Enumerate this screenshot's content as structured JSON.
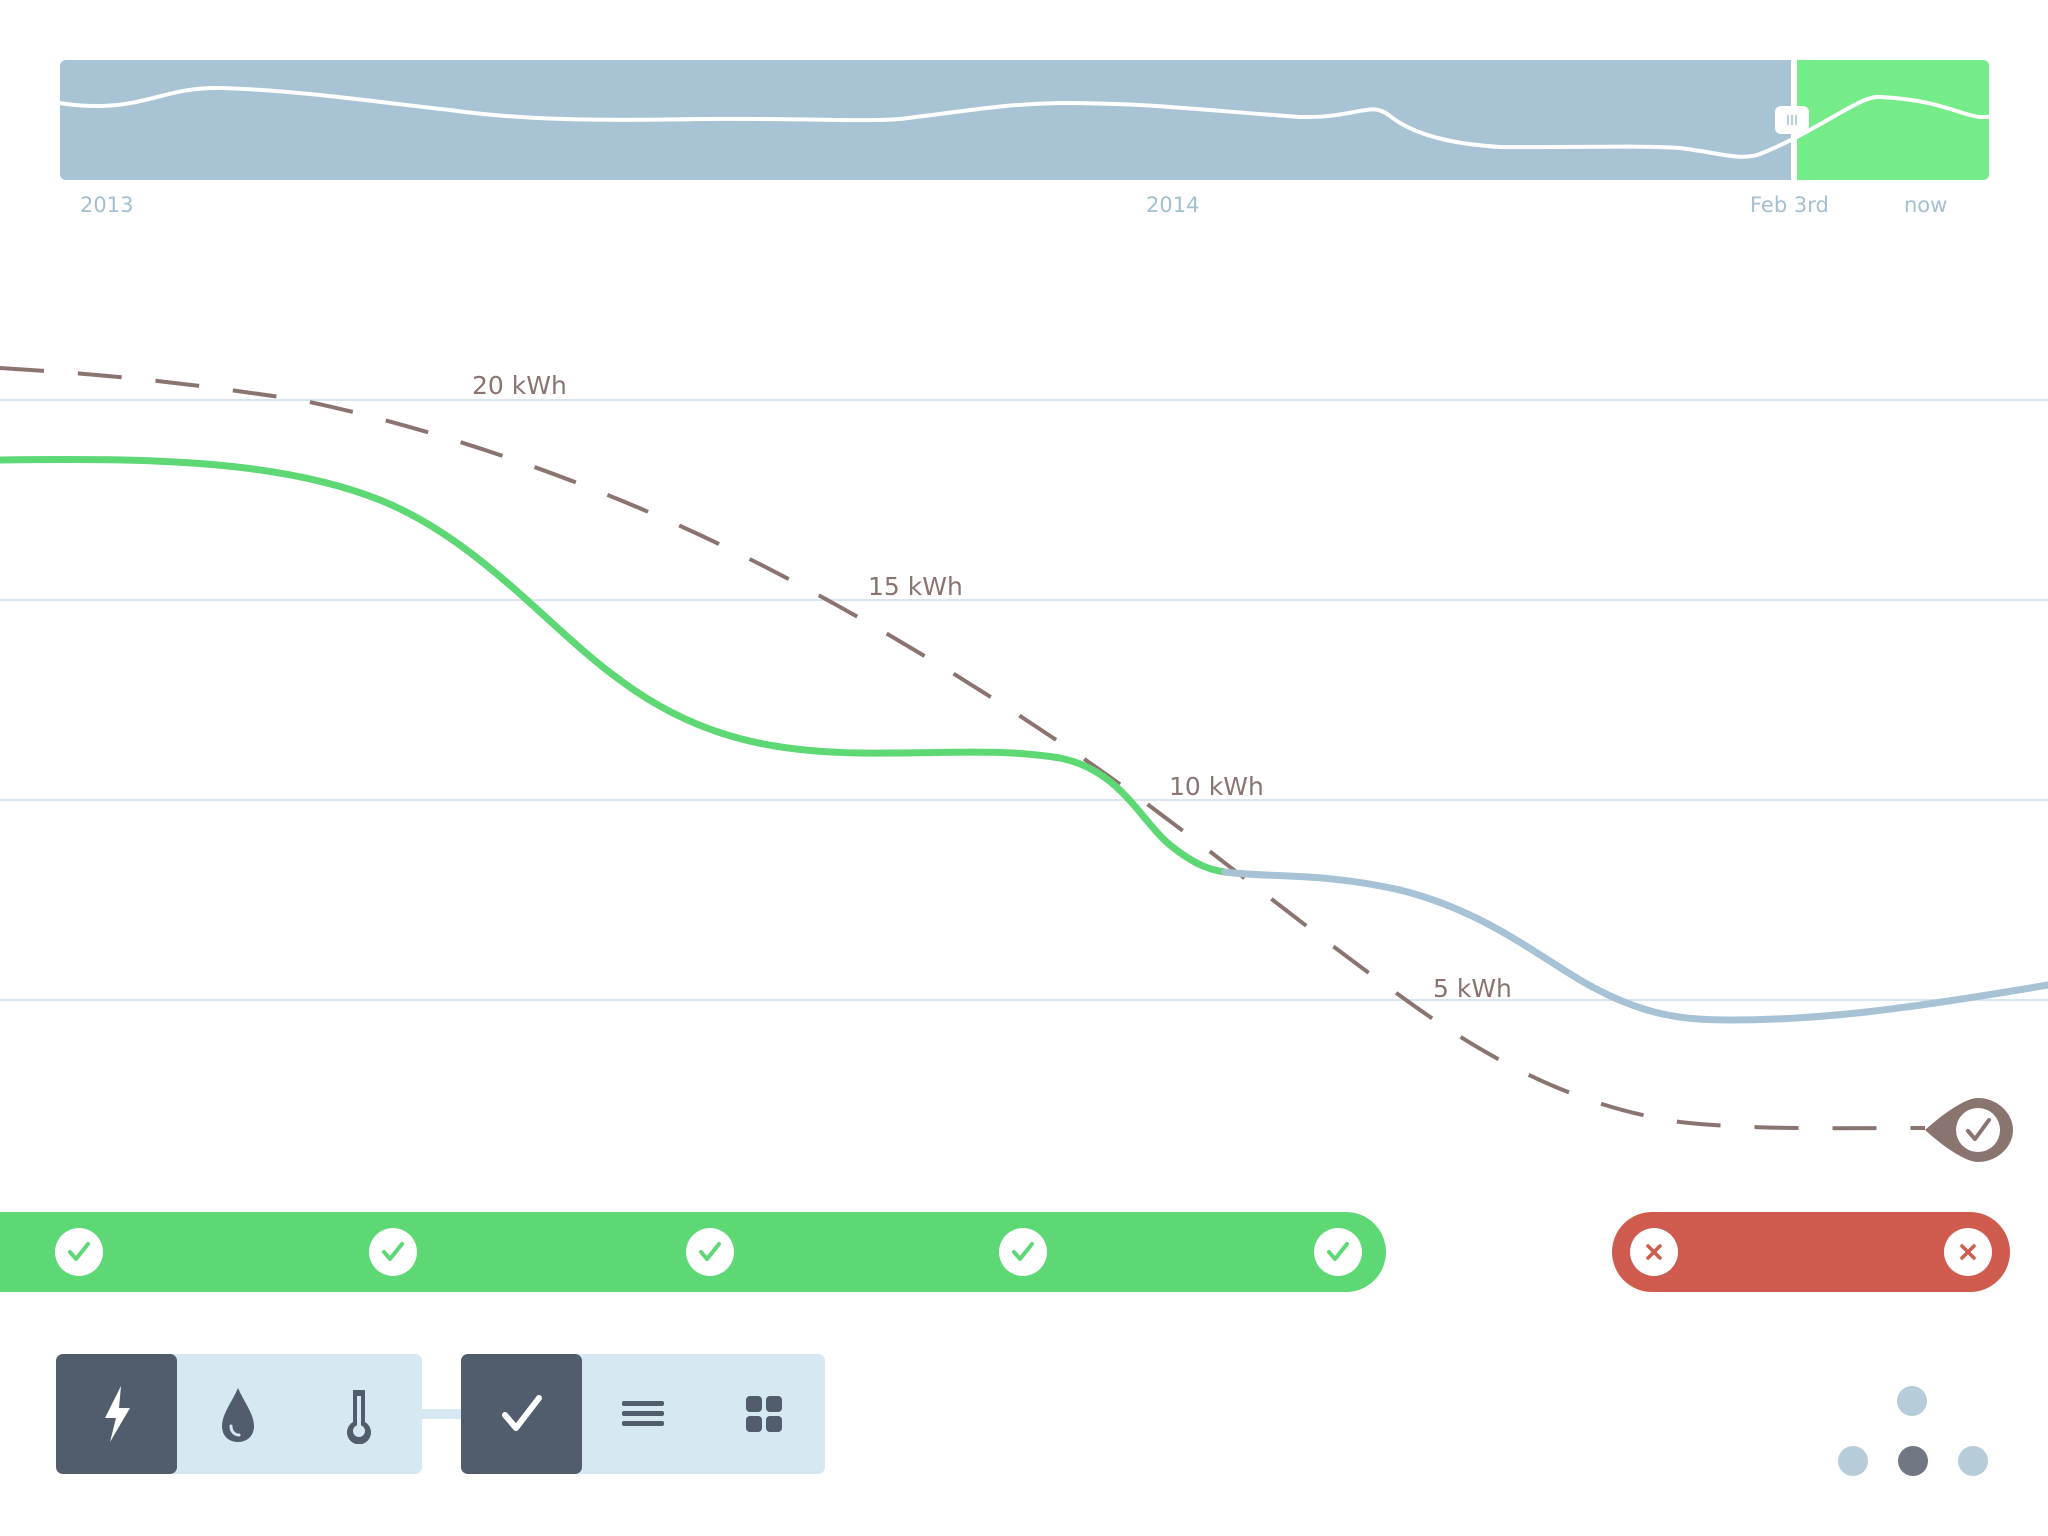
{
  "timeline": {
    "labels": {
      "start": "2013",
      "middle": "2014",
      "selected": "Feb 3rd",
      "end": "now"
    },
    "colors": {
      "history": "#a8c3d3",
      "selection": "#76eb8a",
      "line": "#ffffff"
    }
  },
  "chart_data": {
    "type": "line",
    "gridlines": [
      "20 kWh",
      "15 kWh",
      "10 kWh",
      "5 kWh"
    ],
    "series": [
      {
        "color": "#5ed775",
        "style": "solid"
      },
      {
        "color": "#a7c2d4",
        "style": "solid"
      },
      {
        "color": "#8a7470",
        "style": "dashed"
      }
    ],
    "goal_marker": "check-icon"
  },
  "status": {
    "success_count": 5,
    "fail_count": 2,
    "success_icon": "check-icon",
    "fail_icon": "x-icon",
    "colors": {
      "success": "#5ed775",
      "fail": "#cf5a4e"
    }
  },
  "toolbar": {
    "resource_group": {
      "selected": "electricity",
      "items": [
        "lightning-icon",
        "water-drop-icon",
        "thermometer-icon"
      ]
    },
    "view_group": {
      "selected": "checklist",
      "items": [
        "check-icon",
        "list-icon",
        "grid-icon"
      ]
    }
  },
  "pager": {
    "dots": 4,
    "active_index": 2
  }
}
